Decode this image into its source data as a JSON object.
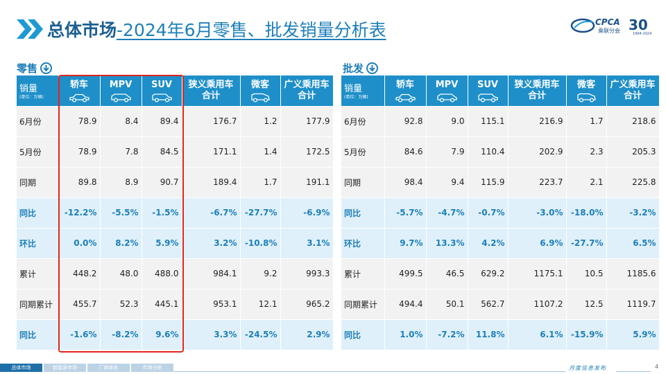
{
  "title": {
    "bold": "总体市场",
    "rest": "-2024年6月零售、批发销量分析表"
  },
  "logo": {
    "name": "CPCA",
    "sub": "乘联分会",
    "anniv": "30",
    "years": "1994-2024"
  },
  "retail": {
    "label": "零售",
    "headers": [
      {
        "line1": "销量",
        "unit": "(单位：万辆)"
      },
      {
        "line1": "轿车",
        "icon": "sedan-icon"
      },
      {
        "line1": "MPV",
        "icon": "mpv-icon"
      },
      {
        "line1": "SUV",
        "icon": "suv-icon"
      },
      {
        "line1": "狭义乘用车",
        "line2": "合计"
      },
      {
        "line1": "微客",
        "icon": "minivan-icon"
      },
      {
        "line1": "广义乘用车",
        "line2": "合计"
      }
    ],
    "rows": [
      {
        "type": "plain",
        "cells": [
          "6月份",
          "78.9",
          "8.4",
          "89.4",
          "176.7",
          "1.2",
          "177.9"
        ]
      },
      {
        "type": "plain",
        "cells": [
          "5月份",
          "78.9",
          "7.8",
          "84.5",
          "171.1",
          "1.4",
          "172.5"
        ]
      },
      {
        "type": "plain",
        "cells": [
          "同期",
          "89.8",
          "8.9",
          "90.7",
          "189.4",
          "1.7",
          "191.1"
        ]
      },
      {
        "type": "pct",
        "cells": [
          "同比",
          "-12.2%",
          "-5.5%",
          "-1.5%",
          "-6.7%",
          "-27.7%",
          "-6.9%"
        ]
      },
      {
        "type": "pct",
        "cells": [
          "环比",
          "0.0%",
          "8.2%",
          "5.9%",
          "3.2%",
          "-10.8%",
          "3.1%"
        ]
      },
      {
        "type": "plain",
        "cells": [
          "累计",
          "448.2",
          "48.0",
          "488.0",
          "984.1",
          "9.2",
          "993.3"
        ]
      },
      {
        "type": "plain",
        "cells": [
          "同期累计",
          "455.7",
          "52.3",
          "445.1",
          "953.1",
          "12.1",
          "965.2"
        ]
      },
      {
        "type": "pct",
        "cells": [
          "同比",
          "-1.6%",
          "-8.2%",
          "9.6%",
          "3.3%",
          "-24.5%",
          "2.9%"
        ]
      }
    ]
  },
  "wholesale": {
    "label": "批发",
    "headers": [
      {
        "line1": "销量",
        "unit": "(单位：万辆)"
      },
      {
        "line1": "轿车",
        "icon": "sedan-icon"
      },
      {
        "line1": "MPV",
        "icon": "mpv-icon"
      },
      {
        "line1": "SUV",
        "icon": "suv-icon"
      },
      {
        "line1": "狭义乘用车",
        "line2": "合计"
      },
      {
        "line1": "微客",
        "icon": "minivan-icon"
      },
      {
        "line1": "广义乘用车",
        "line2": "合计"
      }
    ],
    "rows": [
      {
        "type": "plain",
        "cells": [
          "6月份",
          "92.8",
          "9.0",
          "115.1",
          "216.9",
          "1.7",
          "218.6"
        ]
      },
      {
        "type": "plain",
        "cells": [
          "5月份",
          "84.6",
          "7.9",
          "110.4",
          "202.9",
          "2.3",
          "205.3"
        ]
      },
      {
        "type": "plain",
        "cells": [
          "同期",
          "98.4",
          "9.4",
          "115.9",
          "223.7",
          "2.1",
          "225.8"
        ]
      },
      {
        "type": "pct",
        "cells": [
          "同比",
          "-5.7%",
          "-4.7%",
          "-0.7%",
          "-3.0%",
          "-18.0%",
          "-3.2%"
        ]
      },
      {
        "type": "pct",
        "cells": [
          "环比",
          "9.7%",
          "13.3%",
          "4.2%",
          "6.9%",
          "-27.7%",
          "6.5%"
        ]
      },
      {
        "type": "plain",
        "cells": [
          "累计",
          "499.5",
          "46.5",
          "629.2",
          "1175.1",
          "10.5",
          "1185.6"
        ]
      },
      {
        "type": "plain",
        "cells": [
          "同期累计",
          "494.4",
          "50.1",
          "562.7",
          "1107.2",
          "12.5",
          "1119.7"
        ]
      },
      {
        "type": "pct",
        "cells": [
          "同比",
          "1.0%",
          "-7.2%",
          "11.8%",
          "6.1%",
          "-15.9%",
          "5.9%"
        ]
      }
    ]
  },
  "footer": {
    "tabs": [
      "总体市场",
      "新能源市场",
      "厂商排名",
      "市场分析"
    ],
    "active_tab": 0,
    "publisher": "月度信息发布",
    "page": "4"
  },
  "colors": {
    "header_blue": "#1e8fc9",
    "title_blue": "#1d7fb8",
    "highlight_red": "#e1251b",
    "pct_row_bg": "#dff0fa"
  }
}
